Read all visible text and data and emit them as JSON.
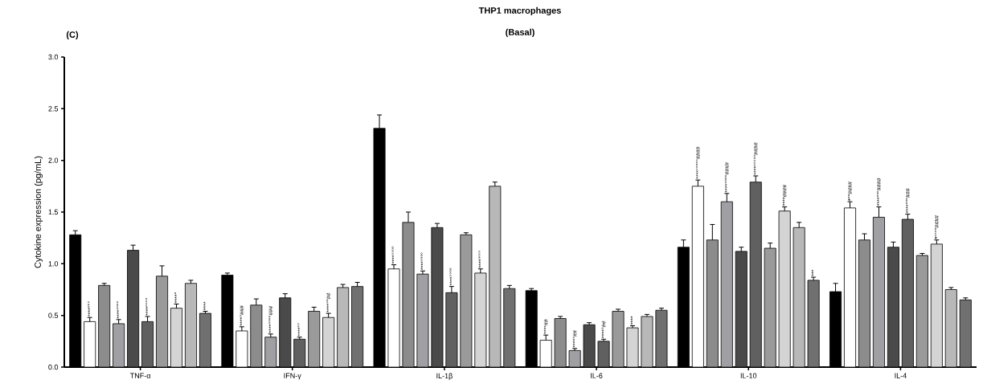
{
  "chart_data": {
    "type": "bar",
    "title": "THP1 macrophages",
    "subtitle": "(Basal)",
    "ylabel": "Cytokine expression (pg/mL)",
    "annotations": [
      "(C)"
    ],
    "categories": [
      "TNF-α",
      "IFN-γ",
      "IL-1β",
      "IL-6",
      "IL-10",
      "IL-4"
    ],
    "ylim": [
      0,
      3.0
    ],
    "yticks": [
      {
        "value": 0,
        "label": "0.0"
      },
      {
        "value": 0.5,
        "label": "0.5"
      },
      {
        "value": 1.0,
        "label": "1.0"
      },
      {
        "value": 1.5,
        "label": "1.5"
      },
      {
        "value": 2.0,
        "label": "2.0"
      },
      {
        "value": 2.5,
        "label": "2.5"
      },
      {
        "value": 3.0,
        "label": "3.0"
      }
    ],
    "grid": false,
    "legend": false,
    "series": [
      {
        "color": "#000000",
        "values": [
          1.28,
          0.89,
          2.31,
          0.74,
          1.16,
          0.73
        ],
        "errors": [
          0.04,
          0.02,
          0.13,
          0.02,
          0.07,
          0.08
        ]
      },
      {
        "color": "#ffffff",
        "values": [
          0.44,
          0.35,
          0.95,
          0.26,
          1.75,
          1.54
        ],
        "errors": [
          0.04,
          0.04,
          0.04,
          0.05,
          0.06,
          0.06
        ],
        "value_labels": [
          "****°°°",
          "****°###",
          "****°°°°",
          "****##",
          "****°°°°°####",
          "*****°°####"
        ]
      },
      {
        "color": "#8c8c8c",
        "values": [
          0.79,
          0.6,
          1.4,
          0.47,
          1.23,
          1.23
        ],
        "errors": [
          0.02,
          0.06,
          0.1,
          0.02,
          0.15,
          0.06
        ]
      },
      {
        "color": "#a0a0a4",
        "values": [
          0.42,
          0.29,
          0.9,
          0.16,
          1.6,
          1.45
        ],
        "errors": [
          0.04,
          0.03,
          0.03,
          0.02,
          0.08,
          0.1
        ],
        "value_labels": [
          "****°°°°",
          "****°°°°###",
          "****°°°°",
          "****°##",
          "****°°°°####",
          "****°°°####"
        ]
      },
      {
        "color": "#4a4a4a",
        "values": [
          1.13,
          0.67,
          1.35,
          0.41,
          1.12,
          1.16
        ],
        "errors": [
          0.05,
          0.04,
          0.04,
          0.02,
          0.04,
          0.05
        ]
      },
      {
        "color": "#606060",
        "values": [
          0.44,
          0.27,
          0.72,
          0.25,
          1.79,
          1.43
        ],
        "errors": [
          0.05,
          0.02,
          0.06,
          0.02,
          0.06,
          0.05
        ],
        "value_labels": [
          "****°°°°",
          "****°°",
          "****°°°°",
          "****°##",
          "****°°°°°####",
          "****°°°###"
        ]
      },
      {
        "color": "#9a9a9a",
        "values": [
          0.88,
          0.54,
          1.28,
          0.54,
          1.15,
          1.08
        ],
        "errors": [
          0.1,
          0.04,
          0.02,
          0.02,
          0.05,
          0.02
        ]
      },
      {
        "color": "#d4d4d4",
        "values": [
          0.57,
          0.48,
          0.91,
          0.38,
          1.51,
          1.19
        ],
        "errors": [
          0.04,
          0.04,
          0.04,
          0.02,
          0.04,
          0.04
        ],
        "value_labels": [
          "****°",
          "****°°##",
          "****°°°°",
          "****",
          "****####",
          "*****°°°°####"
        ]
      },
      {
        "color": "#b8b8b8",
        "values": [
          0.81,
          0.77,
          1.75,
          0.49,
          1.35,
          0.75
        ],
        "errors": [
          0.03,
          0.03,
          0.04,
          0.02,
          0.05,
          0.02
        ]
      },
      {
        "color": "#707070",
        "values": [
          0.52,
          0.78,
          0.76,
          0.55,
          0.84,
          0.65
        ],
        "errors": [
          0.02,
          0.04,
          0.03,
          0.02,
          0.03,
          0.02
        ],
        "value_labels": [
          "****",
          null,
          null,
          null,
          "***",
          null
        ]
      }
    ]
  }
}
